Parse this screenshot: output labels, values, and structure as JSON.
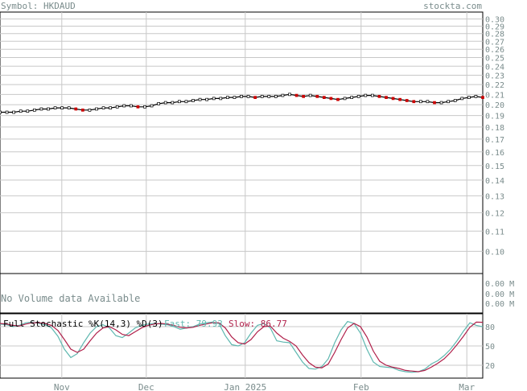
{
  "header": {
    "symbol_label": "Symbol: HKDAUD",
    "site_label": "stockta.com"
  },
  "volume": {
    "no_data_label": "No Volume data Available",
    "tick_labels": [
      "0.00 M",
      "0.00 M",
      "0.00 M"
    ]
  },
  "stochastic": {
    "title": "Full Stochastic %K(14,3) %D(3)",
    "fast_label": "Fast: 79.93",
    "slow_label": "Slow: 86.77",
    "ticks": [
      20,
      50,
      80
    ],
    "fast_color": "#5fb8b0",
    "slow_color": "#b0204a"
  },
  "colors": {
    "text": "#7a8c8c",
    "axis": "#000000",
    "grid": "#c8c8c8",
    "price_line": "#000000",
    "candle_down": "#cc0000"
  },
  "chart_data": [
    {
      "type": "line",
      "title": "",
      "xlabel": "",
      "ylabel": "",
      "x_tick_labels": [
        "Nov",
        "Dec",
        "Jan 2025",
        "Feb",
        "Mar"
      ],
      "y_tick_labels": [
        "0.30",
        "0.29",
        "0.28",
        "0.27",
        "0.26",
        "0.25",
        "0.24",
        "0.23",
        "0.22",
        "0.21",
        "0.20",
        "0.19",
        "0.18",
        "0.17",
        "0.16",
        "0.15",
        "0.14",
        "0.13",
        "0.12",
        "0.11",
        "0.10"
      ],
      "ylim": [
        0.09,
        0.31
      ],
      "log_scale": true,
      "grid": true,
      "series": [
        {
          "values": [
            0.193,
            0.193,
            0.193,
            0.194,
            0.194,
            0.195,
            0.196,
            0.196,
            0.197,
            0.197,
            0.197,
            0.196,
            0.195,
            0.195,
            0.196,
            0.197,
            0.197,
            0.198,
            0.199,
            0.199,
            0.198,
            0.198,
            0.199,
            0.201,
            0.202,
            0.202,
            0.203,
            0.203,
            0.204,
            0.205,
            0.205,
            0.206,
            0.206,
            0.207,
            0.207,
            0.208,
            0.208,
            0.207,
            0.208,
            0.208,
            0.208,
            0.209,
            0.21,
            0.209,
            0.208,
            0.209,
            0.208,
            0.207,
            0.206,
            0.205,
            0.206,
            0.207,
            0.208,
            0.209,
            0.209,
            0.208,
            0.207,
            0.206,
            0.205,
            0.204,
            0.203,
            0.203,
            0.203,
            0.202,
            0.202,
            0.203,
            0.204,
            0.206,
            0.207,
            0.208,
            0.207
          ]
        }
      ]
    },
    {
      "type": "line",
      "title": "Full Stochastic %K(14,3) %D(3)",
      "ylim": [
        0,
        100
      ],
      "y_tick_labels": [
        "80",
        "50",
        "20"
      ],
      "x_tick_labels": [
        "Nov",
        "Dec",
        "Jan 2025",
        "Feb",
        "Mar"
      ],
      "series": [
        {
          "name": "Fast",
          "values": [
            84,
            83,
            80,
            82,
            86,
            87,
            85,
            83,
            78,
            65,
            45,
            32,
            38,
            55,
            70,
            80,
            83,
            78,
            66,
            63,
            70,
            78,
            82,
            84,
            85,
            84,
            83,
            80,
            76,
            78,
            80,
            84,
            86,
            87,
            85,
            66,
            52,
            50,
            55,
            70,
            82,
            85,
            78,
            58,
            56,
            55,
            40,
            25,
            15,
            14,
            18,
            30,
            55,
            75,
            88,
            85,
            70,
            45,
            25,
            18,
            17,
            16,
            12,
            10,
            9,
            10,
            14,
            22,
            27,
            35,
            45,
            58,
            73,
            86,
            82,
            79.93
          ]
        },
        {
          "name": "Slow",
          "values": [
            85,
            84,
            82,
            81,
            84,
            86,
            86,
            85,
            82,
            74,
            60,
            45,
            40,
            45,
            58,
            70,
            78,
            80,
            75,
            68,
            66,
            72,
            78,
            82,
            84,
            85,
            84,
            82,
            79,
            78,
            79,
            82,
            84,
            86,
            86,
            78,
            64,
            55,
            53,
            60,
            72,
            80,
            81,
            70,
            62,
            57,
            50,
            36,
            24,
            17,
            16,
            22,
            40,
            60,
            78,
            85,
            80,
            64,
            42,
            26,
            20,
            17,
            15,
            12,
            11,
            10,
            12,
            17,
            23,
            30,
            40,
            52,
            65,
            79,
            87,
            86.77
          ]
        }
      ]
    }
  ]
}
